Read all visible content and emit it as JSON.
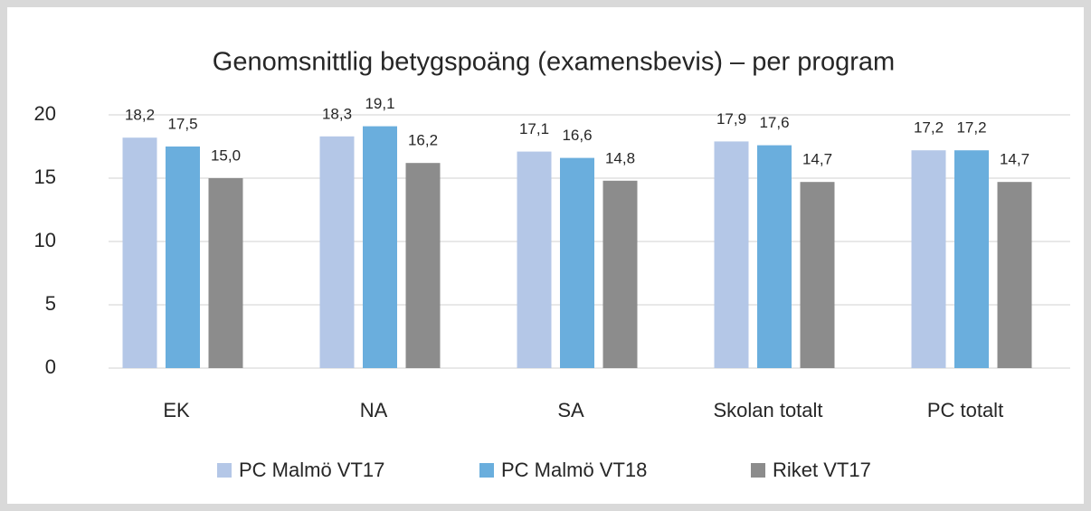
{
  "chart_data": {
    "type": "bar",
    "title": "Genomsnittlig betygspoäng (examensbevis) – per program",
    "categories": [
      "EK",
      "NA",
      "SA",
      "Skolan totalt",
      "PC totalt"
    ],
    "series": [
      {
        "name": "PC Malmö VT17",
        "color": "#b4c7e7",
        "values": [
          18.2,
          18.3,
          17.1,
          17.9,
          17.2
        ],
        "value_labels": [
          "18,2",
          "18,3",
          "17,1",
          "17,9",
          "17,2"
        ]
      },
      {
        "name": "PC Malmö VT18",
        "color": "#6aaedd",
        "values": [
          17.5,
          19.1,
          16.6,
          17.6,
          17.2
        ],
        "value_labels": [
          "17,5",
          "19,1",
          "16,6",
          "17,6",
          "17,2"
        ]
      },
      {
        "name": "Riket VT17",
        "color": "#8c8c8c",
        "values": [
          15.0,
          16.2,
          14.8,
          14.7,
          14.7
        ],
        "value_labels": [
          "15,0",
          "16,2",
          "14,8",
          "14,7",
          "14,7"
        ]
      }
    ],
    "ylim": [
      0,
      20
    ],
    "yticks": [
      0,
      5,
      10,
      15,
      20
    ],
    "grid": true,
    "legend": "bottom"
  }
}
